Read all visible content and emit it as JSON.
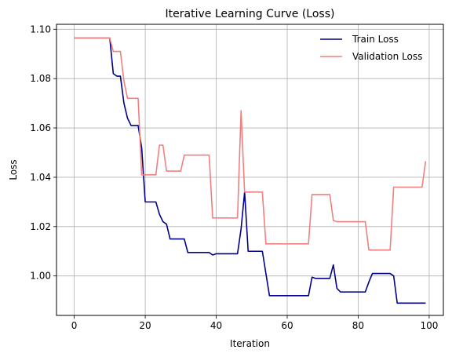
{
  "chart_data": {
    "type": "line",
    "title": "Iterative Learning Curve (Loss)",
    "xlabel": "Iteration",
    "ylabel": "Loss",
    "xlim": [
      -5,
      104
    ],
    "ylim": [
      0.984,
      1.102
    ],
    "xticks": [
      0,
      20,
      40,
      60,
      80,
      100
    ],
    "yticks": [
      1.0,
      1.02,
      1.04,
      1.06,
      1.08,
      1.1
    ],
    "xtick_labels": [
      "0",
      "20",
      "40",
      "60",
      "80",
      "100"
    ],
    "ytick_labels": [
      "1.00",
      "1.02",
      "1.04",
      "1.06",
      "1.08",
      "1.10"
    ],
    "grid": true,
    "legend": "top-right",
    "colors": {
      "train": "#00008b",
      "validation": "#f08080"
    },
    "series": [
      {
        "name": "Train Loss",
        "color": "#00008b",
        "points": [
          [
            0,
            1.0965
          ],
          [
            10,
            1.0965
          ],
          [
            11,
            1.082
          ],
          [
            12,
            1.081
          ],
          [
            13,
            1.081
          ],
          [
            14,
            1.07
          ],
          [
            15,
            1.064
          ],
          [
            16,
            1.061
          ],
          [
            17,
            1.061
          ],
          [
            18,
            1.061
          ],
          [
            19,
            1.052
          ],
          [
            20,
            1.03
          ],
          [
            21,
            1.03
          ],
          [
            22,
            1.03
          ],
          [
            23,
            1.03
          ],
          [
            24,
            1.025
          ],
          [
            25,
            1.022
          ],
          [
            26,
            1.021
          ],
          [
            27,
            1.015
          ],
          [
            28,
            1.015
          ],
          [
            29,
            1.015
          ],
          [
            30,
            1.015
          ],
          [
            31,
            1.015
          ],
          [
            32,
            1.0095
          ],
          [
            38,
            1.0095
          ],
          [
            39,
            1.0085
          ],
          [
            40,
            1.009
          ],
          [
            46,
            1.009
          ],
          [
            47,
            1.019
          ],
          [
            48,
            1.034
          ],
          [
            49,
            1.01
          ],
          [
            53,
            1.01
          ],
          [
            54,
            1.001
          ],
          [
            55,
            0.992
          ],
          [
            66,
            0.992
          ],
          [
            67,
            0.9995
          ],
          [
            68,
            0.999
          ],
          [
            72,
            0.999
          ],
          [
            73,
            1.0045
          ],
          [
            74,
            0.995
          ],
          [
            75,
            0.9935
          ],
          [
            82,
            0.9935
          ],
          [
            83,
            0.9975
          ],
          [
            84,
            1.001
          ],
          [
            89,
            1.001
          ],
          [
            90,
            1.0
          ],
          [
            91,
            0.989
          ],
          [
            99,
            0.989
          ]
        ]
      },
      {
        "name": "Validation Loss",
        "color": "#f08080",
        "points": [
          [
            0,
            1.0965
          ],
          [
            10,
            1.0965
          ],
          [
            11,
            1.091
          ],
          [
            13,
            1.091
          ],
          [
            14,
            1.079
          ],
          [
            15,
            1.072
          ],
          [
            18,
            1.072
          ],
          [
            19,
            1.041
          ],
          [
            23,
            1.041
          ],
          [
            24,
            1.053
          ],
          [
            25,
            1.053
          ],
          [
            26,
            1.0425
          ],
          [
            30,
            1.0425
          ],
          [
            31,
            1.049
          ],
          [
            38,
            1.049
          ],
          [
            39,
            1.0235
          ],
          [
            46,
            1.0235
          ],
          [
            47,
            1.067
          ],
          [
            48,
            1.034
          ],
          [
            53,
            1.034
          ],
          [
            54,
            1.013
          ],
          [
            66,
            1.013
          ],
          [
            67,
            1.033
          ],
          [
            72,
            1.033
          ],
          [
            73,
            1.0225
          ],
          [
            74,
            1.022
          ],
          [
            82,
            1.022
          ],
          [
            83,
            1.0105
          ],
          [
            89,
            1.0105
          ],
          [
            90,
            1.036
          ],
          [
            98,
            1.036
          ],
          [
            99,
            1.0465
          ]
        ]
      }
    ]
  }
}
